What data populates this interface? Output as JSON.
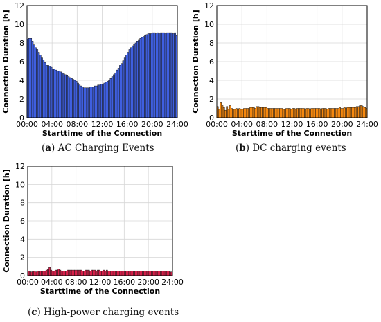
{
  "captions": [
    {
      "letter": "a",
      "text": "AC Charging Events"
    },
    {
      "letter": "b",
      "text": "DC charging events"
    },
    {
      "letter": "c",
      "text": "High-power charging events"
    }
  ],
  "chart_data": [
    {
      "type": "bar",
      "panel": "a",
      "xlabel": "Starttime of the Connection",
      "ylabel": "Connection Duration [h]",
      "xlim": [
        0,
        24
      ],
      "ylim": [
        0,
        12
      ],
      "xticks": [
        "00:00",
        "04:00",
        "08:00",
        "12:00",
        "16:00",
        "20:00",
        "24:00"
      ],
      "yticks": [
        0,
        2,
        4,
        6,
        8,
        10,
        12
      ],
      "bin_hours": 0.25,
      "grid": true,
      "bar_color": "#3f5fe0",
      "values": [
        8.4,
        8.5,
        8.5,
        8.2,
        7.8,
        7.5,
        7.3,
        7.0,
        6.7,
        6.4,
        6.2,
        5.9,
        5.6,
        5.6,
        5.5,
        5.4,
        5.2,
        5.2,
        5.1,
        5.0,
        5.0,
        4.9,
        4.8,
        4.7,
        4.6,
        4.5,
        4.4,
        4.3,
        4.2,
        4.1,
        4.0,
        3.9,
        3.7,
        3.5,
        3.4,
        3.3,
        3.2,
        3.2,
        3.2,
        3.2,
        3.3,
        3.3,
        3.3,
        3.4,
        3.4,
        3.5,
        3.5,
        3.6,
        3.6,
        3.7,
        3.8,
        3.9,
        4.0,
        4.2,
        4.4,
        4.6,
        4.8,
        5.1,
        5.3,
        5.6,
        5.8,
        6.1,
        6.4,
        6.7,
        7.0,
        7.3,
        7.5,
        7.7,
        7.9,
        8.0,
        8.2,
        8.3,
        8.5,
        8.6,
        8.7,
        8.8,
        8.9,
        9.0,
        9.0,
        9.0,
        9.1,
        9.1,
        9.0,
        9.1,
        9.0,
        9.1,
        9.1,
        9.1,
        9.0,
        9.1,
        9.1,
        9.1,
        9.1,
        9.0,
        9.1,
        8.8
      ]
    },
    {
      "type": "bar",
      "panel": "b",
      "xlabel": "Starttime of the Connection",
      "ylabel": "Connection Duration [h]",
      "xlim": [
        0,
        24
      ],
      "ylim": [
        0,
        12
      ],
      "xticks": [
        "00:00",
        "04:00",
        "08:00",
        "12:00",
        "16:00",
        "20:00",
        "24:00"
      ],
      "yticks": [
        0,
        2,
        4,
        6,
        8,
        10,
        12
      ],
      "bin_hours": 0.25,
      "grid": true,
      "bar_color": "#f5880f",
      "values": [
        1.2,
        0.9,
        1.6,
        1.3,
        1.1,
        0.8,
        1.2,
        0.9,
        1.3,
        1.0,
        0.9,
        0.9,
        1.0,
        0.9,
        1.0,
        0.9,
        0.9,
        1.0,
        1.0,
        1.0,
        1.0,
        1.1,
        1.1,
        1.1,
        1.0,
        1.2,
        1.2,
        1.1,
        1.1,
        1.1,
        1.1,
        1.1,
        1.0,
        1.0,
        1.0,
        1.0,
        1.0,
        1.0,
        1.0,
        1.0,
        1.0,
        1.0,
        0.9,
        0.9,
        1.0,
        1.0,
        1.0,
        0.9,
        1.0,
        1.0,
        0.9,
        1.0,
        1.0,
        1.0,
        1.0,
        1.0,
        0.9,
        1.0,
        1.0,
        0.9,
        1.0,
        1.0,
        1.0,
        1.0,
        1.0,
        1.0,
        0.9,
        1.0,
        1.0,
        1.0,
        0.9,
        1.0,
        1.0,
        1.0,
        1.0,
        1.0,
        1.0,
        1.0,
        1.1,
        1.0,
        1.0,
        1.1,
        1.0,
        1.1,
        1.1,
        1.1,
        1.1,
        1.1,
        1.1,
        1.2,
        1.2,
        1.3,
        1.3,
        1.2,
        1.1,
        1.0
      ]
    },
    {
      "type": "bar",
      "panel": "c",
      "xlabel": "Starttime of the Connection",
      "ylabel": "Connection Duration [h]",
      "xlim": [
        0,
        24
      ],
      "ylim": [
        0,
        12
      ],
      "xticks": [
        "00:00",
        "04:00",
        "08:00",
        "12:00",
        "16:00",
        "20:00",
        "24:00"
      ],
      "yticks": [
        0,
        2,
        4,
        6,
        8,
        10,
        12
      ],
      "bin_hours": 0.25,
      "grid": true,
      "bar_color": "#d81f4a",
      "values": [
        0.5,
        0.5,
        0.4,
        0.5,
        0.5,
        0.4,
        0.5,
        0.5,
        0.5,
        0.5,
        0.5,
        0.5,
        0.6,
        0.7,
        0.9,
        0.6,
        0.5,
        0.5,
        0.6,
        0.6,
        0.7,
        0.6,
        0.5,
        0.5,
        0.5,
        0.5,
        0.6,
        0.6,
        0.6,
        0.6,
        0.6,
        0.6,
        0.6,
        0.6,
        0.6,
        0.6,
        0.5,
        0.5,
        0.6,
        0.6,
        0.6,
        0.5,
        0.6,
        0.6,
        0.6,
        0.5,
        0.6,
        0.6,
        0.5,
        0.5,
        0.6,
        0.5,
        0.6,
        0.5,
        0.5,
        0.5,
        0.5,
        0.5,
        0.5,
        0.5,
        0.5,
        0.5,
        0.5,
        0.5,
        0.5,
        0.5,
        0.5,
        0.5,
        0.5,
        0.5,
        0.5,
        0.5,
        0.5,
        0.5,
        0.5,
        0.5,
        0.5,
        0.5,
        0.5,
        0.5,
        0.5,
        0.5,
        0.5,
        0.5,
        0.5,
        0.5,
        0.5,
        0.5,
        0.5,
        0.5,
        0.5,
        0.5,
        0.5,
        0.5,
        0.4,
        0.4
      ]
    }
  ]
}
